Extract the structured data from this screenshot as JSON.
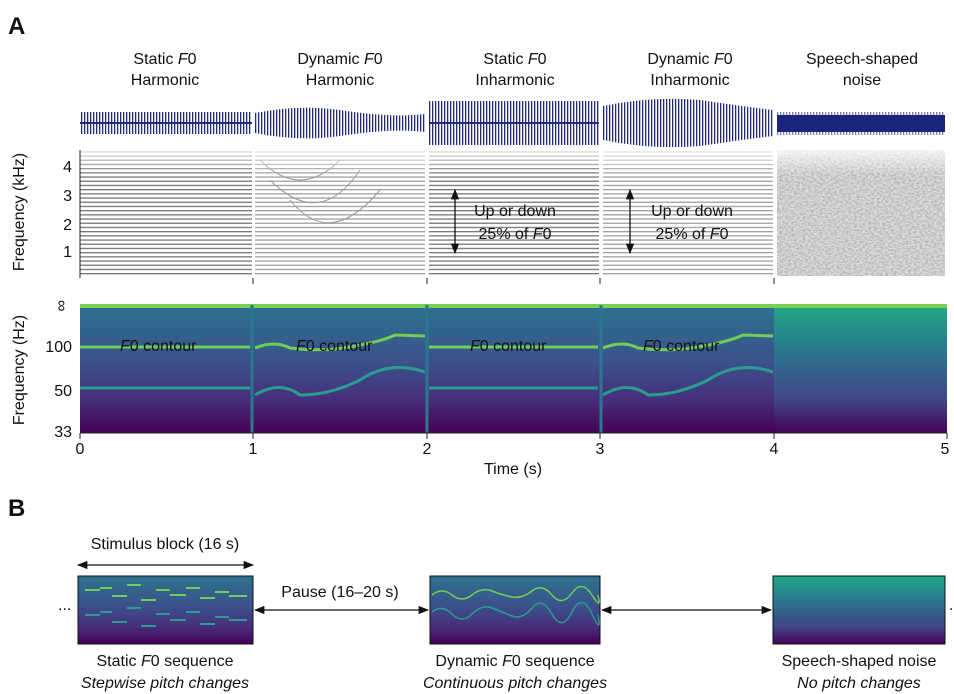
{
  "panel_a": {
    "label": "A",
    "conditions": [
      {
        "line1": "Static F0",
        "line2": "Harmonic"
      },
      {
        "line1": "Dynamic F0",
        "line2": "Harmonic"
      },
      {
        "line1": "Static F0",
        "line2": "Inharmonic"
      },
      {
        "line1": "Dynamic F0",
        "line2": "Inharmonic"
      },
      {
        "line1": "Speech-shaped",
        "line2": "noise"
      }
    ],
    "spectrogram": {
      "ylabel": "Frequency (kHz)",
      "yticks": [
        "4",
        "3",
        "2",
        "1"
      ],
      "annotations": [
        {
          "line1": "Up or down",
          "line2": "25% of F0"
        },
        {
          "line1": "Up or down",
          "line2": "25% of F0"
        }
      ]
    },
    "pitch": {
      "ylabel": "Frequency (Hz)",
      "yticks": [
        "∞",
        "100",
        "50",
        "33"
      ],
      "contour_labels": [
        "F0 contour",
        "F0 contour",
        "F0 contour",
        "F0 contour"
      ]
    },
    "xaxis": {
      "label": "Time (s)",
      "ticks": [
        "0",
        "1",
        "2",
        "3",
        "4",
        "5"
      ]
    }
  },
  "panel_b": {
    "label": "B",
    "block_label": "Stimulus block (16 s)",
    "pause_label": "Pause (16–20 s)",
    "ellipsis_left": "...",
    "ellipsis_right": ".",
    "sequences": [
      {
        "title": "Static F0 sequence",
        "subtitle": "Stepwise pitch changes"
      },
      {
        "title": "Dynamic F0 sequence",
        "subtitle": "Continuous pitch changes"
      },
      {
        "title": "Speech-shaped noise",
        "subtitle": "No pitch changes"
      }
    ]
  }
}
